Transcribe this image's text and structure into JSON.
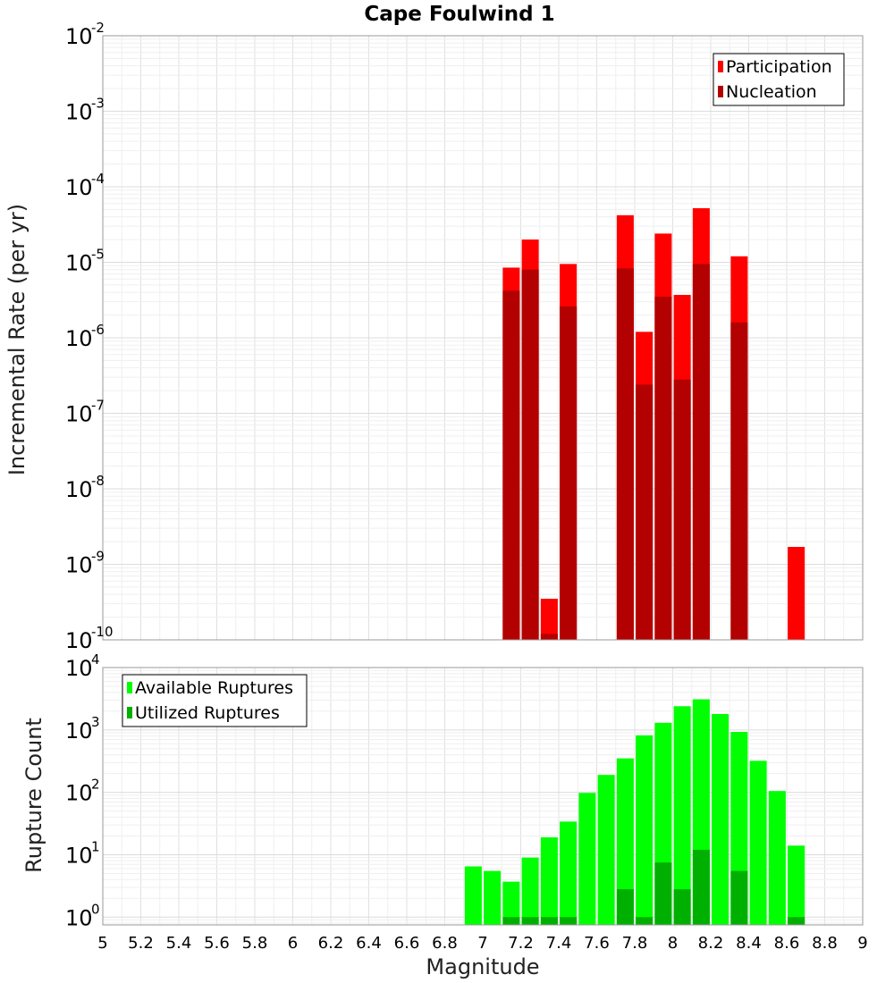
{
  "chart_data": [
    {
      "type": "bar",
      "title": "Cape Foulwind 1",
      "xlabel": "",
      "ylabel": "Incremental Rate (per yr)",
      "xlim": [
        5,
        9
      ],
      "ylim": [
        1e-10,
        0.01
      ],
      "yscale": "log",
      "yticks": [
        {
          "base": "10",
          "exp": "-10",
          "value": 1e-10
        },
        {
          "base": "10",
          "exp": "-9",
          "value": 1e-09
        },
        {
          "base": "10",
          "exp": "-8",
          "value": 1e-08
        },
        {
          "base": "10",
          "exp": "-7",
          "value": 1e-07
        },
        {
          "base": "10",
          "exp": "-6",
          "value": 1e-06
        },
        {
          "base": "10",
          "exp": "-5",
          "value": 1e-05
        },
        {
          "base": "10",
          "exp": "-4",
          "value": 0.0001
        },
        {
          "base": "10",
          "exp": "-3",
          "value": 0.001
        },
        {
          "base": "10",
          "exp": "-2",
          "value": 0.01
        }
      ],
      "grid": true,
      "legend_position": "top-right",
      "legend_color": "#000000",
      "series": [
        {
          "name": "Participation",
          "color": "#ff0000",
          "x": [
            7.15,
            7.25,
            7.35,
            7.45,
            7.75,
            7.85,
            7.95,
            8.05,
            8.15,
            8.35,
            8.65
          ],
          "values": [
            8.5e-06,
            2e-05,
            3.5e-10,
            9.5e-06,
            4.2e-05,
            1.2e-06,
            2.4e-05,
            3.7e-06,
            5.2e-05,
            1.2e-05,
            1.7e-09
          ]
        },
        {
          "name": "Nucleation",
          "color": "#b30000",
          "x": [
            7.15,
            7.25,
            7.35,
            7.45,
            7.75,
            7.85,
            7.95,
            8.05,
            8.15,
            8.35
          ],
          "values": [
            4.2e-06,
            8e-06,
            1.2e-10,
            2.6e-06,
            8.3e-06,
            2.4e-07,
            3.5e-06,
            2.8e-07,
            9.5e-06,
            1.6e-06
          ]
        }
      ]
    },
    {
      "type": "bar",
      "title": "",
      "xlabel": "Magnitude",
      "ylabel": "Rupture Count",
      "xlim": [
        5,
        9
      ],
      "ylim": [
        0.75,
        10000
      ],
      "yscale": "log",
      "yticks": [
        {
          "base": "10",
          "exp": "0",
          "value": 1
        },
        {
          "base": "10",
          "exp": "1",
          "value": 10
        },
        {
          "base": "10",
          "exp": "2",
          "value": 100
        },
        {
          "base": "10",
          "exp": "3",
          "value": 1000
        },
        {
          "base": "10",
          "exp": "4",
          "value": 10000
        }
      ],
      "xticks": [
        "5",
        "5.2",
        "5.4",
        "5.6",
        "5.8",
        "6",
        "6.2",
        "6.4",
        "6.6",
        "6.8",
        "7",
        "7.2",
        "7.4",
        "7.6",
        "7.8",
        "8",
        "8.2",
        "8.4",
        "8.6",
        "8.8",
        "9"
      ],
      "grid": true,
      "legend_position": "top-left",
      "legend_color": "#000000",
      "series": [
        {
          "name": "Available Ruptures",
          "color": "#00ff00",
          "x": [
            6.95,
            7.05,
            7.15,
            7.25,
            7.35,
            7.45,
            7.55,
            7.65,
            7.75,
            7.85,
            7.95,
            8.05,
            8.15,
            8.25,
            8.35,
            8.45,
            8.55,
            8.65
          ],
          "values": [
            6.5,
            5.5,
            3.7,
            9.0,
            19,
            34,
            98,
            190,
            350,
            820,
            1300,
            2400,
            3100,
            1800,
            930,
            320,
            105,
            14
          ]
        },
        {
          "name": "Utilized Ruptures",
          "color": "#00b000",
          "x": [
            7.15,
            7.25,
            7.35,
            7.45,
            7.75,
            7.85,
            7.95,
            8.05,
            8.15,
            8.35,
            8.65
          ],
          "values": [
            1,
            1,
            1,
            1,
            2.8,
            1,
            7.5,
            2.8,
            12,
            5.5,
            1
          ]
        }
      ]
    }
  ]
}
